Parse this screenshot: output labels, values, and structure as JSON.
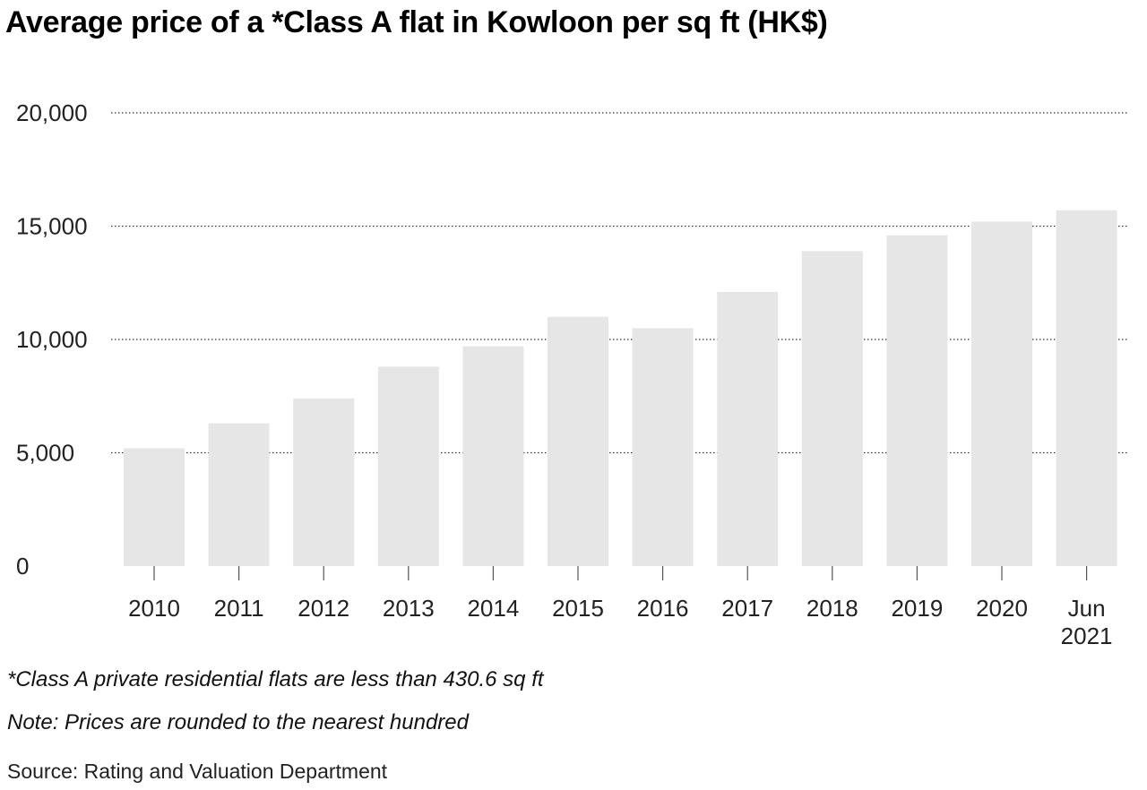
{
  "title": "Average price of a *Class A flat in Kowloon per sq ft (HK$)",
  "footnotes": {
    "class_a_definition": "*Class A private residential flats are less than 430.6 sq ft",
    "rounding_note": "Note: Prices are rounded to the nearest hundred",
    "source": "Source: Rating and Valuation Department"
  },
  "colors": {
    "bar": "#e6e6e6",
    "grid": "#333333",
    "text": "#222222",
    "axis_tick": "#555555"
  },
  "chart_data": {
    "type": "bar",
    "title": "Average price of a *Class A flat in Kowloon per sq ft (HK$)",
    "categories": [
      "2010",
      "2011",
      "2012",
      "2013",
      "2014",
      "2015",
      "2016",
      "2017",
      "2018",
      "2019",
      "2020",
      "Jun 2021"
    ],
    "category_lines": [
      [
        "2010"
      ],
      [
        "2011"
      ],
      [
        "2012"
      ],
      [
        "2013"
      ],
      [
        "2014"
      ],
      [
        "2015"
      ],
      [
        "2016"
      ],
      [
        "2017"
      ],
      [
        "2018"
      ],
      [
        "2019"
      ],
      [
        "2020"
      ],
      [
        "Jun",
        "2021"
      ]
    ],
    "values": [
      5200,
      6300,
      7400,
      8800,
      9700,
      11000,
      10500,
      12100,
      13900,
      14600,
      15200,
      15700
    ],
    "y_ticks": [
      0,
      5000,
      10000,
      15000,
      20000
    ],
    "y_tick_labels": [
      "0",
      "5,000",
      "10,000",
      "15,000",
      "20,000"
    ],
    "ylim": [
      0,
      20000
    ],
    "xlabel": "",
    "ylabel": "",
    "grid": "horizontal dotted",
    "legend": "none"
  }
}
